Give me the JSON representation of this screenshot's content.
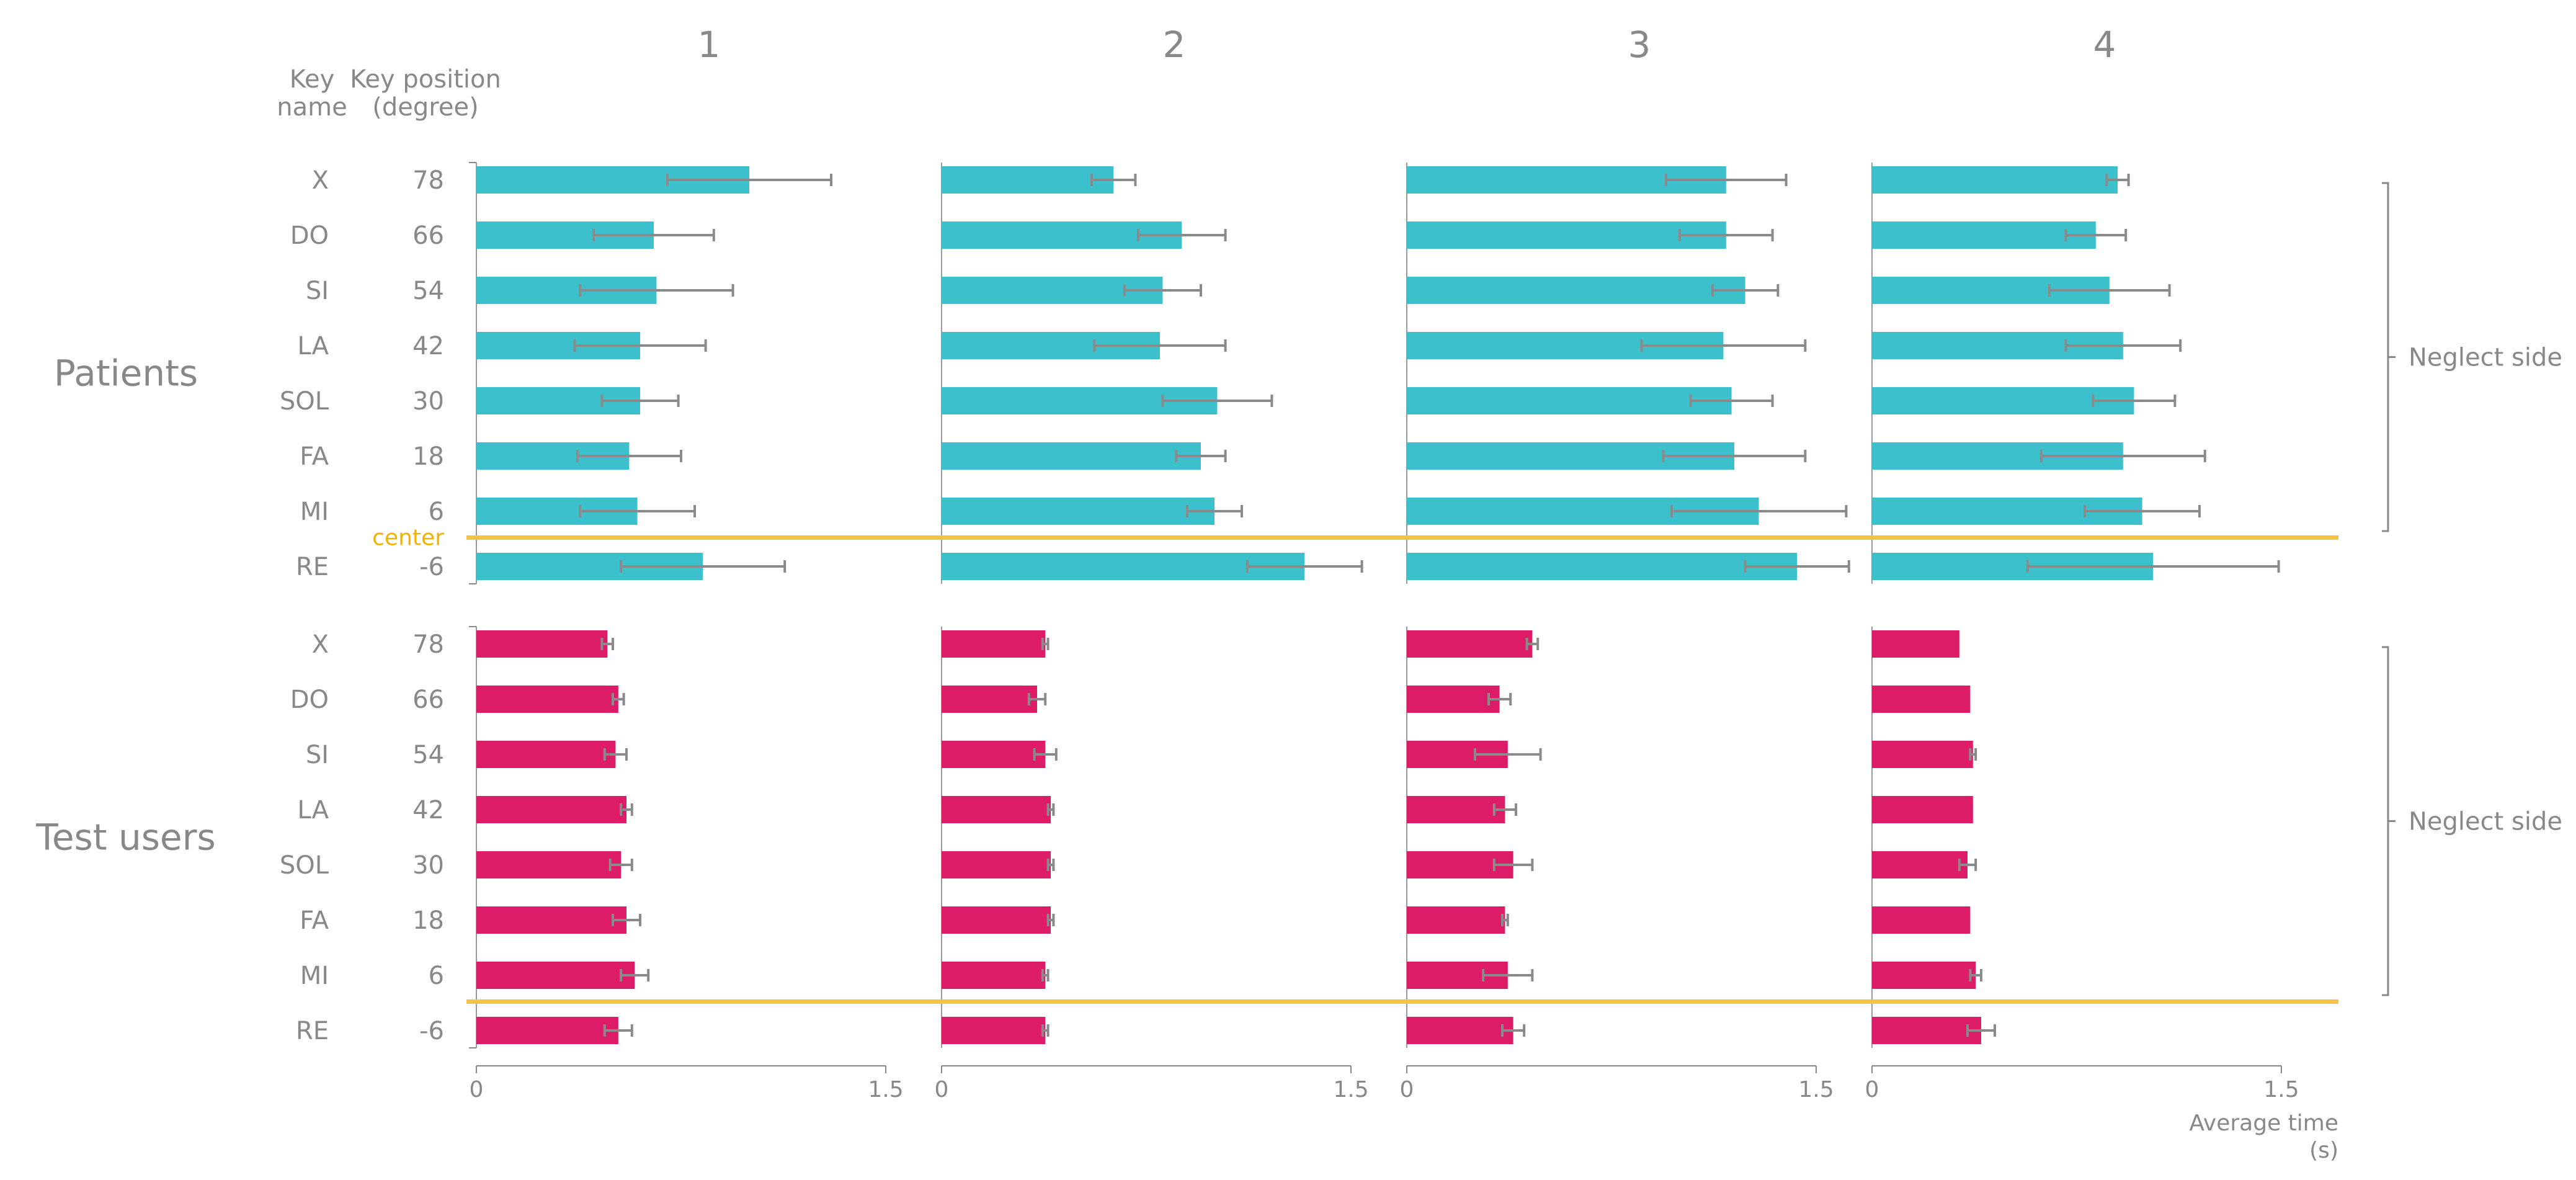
{
  "chart_data": {
    "type": "bar",
    "orientation": "horizontal",
    "panels": [
      "1",
      "2",
      "3",
      "4"
    ],
    "header": {
      "key_name": [
        "Key",
        "name"
      ],
      "key_position": [
        "Key position",
        "(degree)"
      ]
    },
    "keys": [
      {
        "name": "X",
        "position": "78"
      },
      {
        "name": "DO",
        "position": "66"
      },
      {
        "name": "SI",
        "position": "54"
      },
      {
        "name": "LA",
        "position": "42"
      },
      {
        "name": "SOL",
        "position": "30"
      },
      {
        "name": "FA",
        "position": "18"
      },
      {
        "name": "MI",
        "position": "6"
      },
      {
        "name": "RE",
        "position": "-6"
      }
    ],
    "center_label": "center",
    "side_label": "Neglect side",
    "xlim": [
      0,
      1.5
    ],
    "xticks": [
      "0",
      "1.5"
    ],
    "xlabel": [
      "Average time",
      "(s)"
    ],
    "groups": [
      {
        "name": "Patients",
        "color": "#3cc0cb",
        "series": [
          {
            "panel": "1",
            "values": [
              1.0,
              0.65,
              0.66,
              0.6,
              0.6,
              0.56,
              0.59,
              0.83
            ],
            "error": [
              0.3,
              0.22,
              0.28,
              0.24,
              0.14,
              0.19,
              0.21,
              0.3
            ]
          },
          {
            "panel": "2",
            "values": [
              0.63,
              0.88,
              0.81,
              0.8,
              1.01,
              0.95,
              1.0,
              1.33
            ],
            "error": [
              0.08,
              0.16,
              0.14,
              0.24,
              0.2,
              0.09,
              0.1,
              0.21
            ]
          },
          {
            "panel": "3",
            "values": [
              1.17,
              1.17,
              1.24,
              1.16,
              1.19,
              1.2,
              1.29,
              1.43
            ],
            "error": [
              0.22,
              0.17,
              0.12,
              0.3,
              0.15,
              0.26,
              0.32,
              0.19
            ]
          },
          {
            "panel": "4",
            "values": [
              0.9,
              0.82,
              0.87,
              0.92,
              0.96,
              0.92,
              0.99,
              1.03
            ],
            "error": [
              0.04,
              0.11,
              0.22,
              0.21,
              0.15,
              0.3,
              0.21,
              0.46
            ]
          }
        ]
      },
      {
        "name": "Test users",
        "color": "#dc1c66",
        "series": [
          {
            "panel": "1",
            "values": [
              0.48,
              0.52,
              0.51,
              0.55,
              0.53,
              0.55,
              0.58,
              0.52
            ],
            "error": [
              0.02,
              0.02,
              0.04,
              0.02,
              0.04,
              0.05,
              0.05,
              0.05
            ]
          },
          {
            "panel": "2",
            "values": [
              0.38,
              0.35,
              0.38,
              0.4,
              0.4,
              0.4,
              0.38,
              0.38
            ],
            "error": [
              0.01,
              0.03,
              0.04,
              0.01,
              0.01,
              0.01,
              0.01,
              0.01
            ]
          },
          {
            "panel": "3",
            "values": [
              0.46,
              0.34,
              0.37,
              0.36,
              0.39,
              0.36,
              0.37,
              0.39
            ],
            "error": [
              0.02,
              0.04,
              0.12,
              0.04,
              0.07,
              0.01,
              0.09,
              0.04
            ]
          },
          {
            "panel": "4",
            "values": [
              0.32,
              0.36,
              0.37,
              0.37,
              0.35,
              0.36,
              0.38,
              0.4
            ],
            "error": [
              0.0,
              0.0,
              0.01,
              0.0,
              0.03,
              0.0,
              0.02,
              0.05
            ]
          }
        ]
      }
    ]
  }
}
